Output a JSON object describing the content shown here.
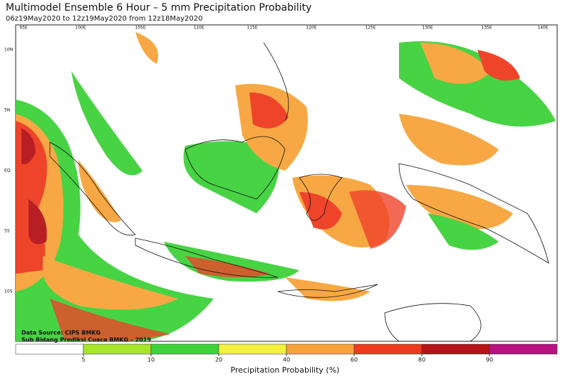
{
  "header": {
    "title": "Multimodel Ensemble 6 Hour – 5 mm Precipitation Probability",
    "subtitle": "06z19May2020 to 12z19May2020 from 12z18May2020"
  },
  "map": {
    "lon_labels": [
      "95E",
      "100E",
      "105E",
      "110E",
      "115E",
      "120E",
      "125E",
      "130E",
      "135E",
      "140E"
    ],
    "lat_labels": [
      "10N",
      "5N",
      "EQ",
      "5S",
      "10S"
    ],
    "credits": [
      "Data Source: CIPS BMKG",
      "Sub Bidang Prediksi Cuaca BMKG – 2019"
    ]
  },
  "colorbar": {
    "colors": [
      "#ffffff",
      "#a6e52a",
      "#3fd13a",
      "#f2f23c",
      "#f7a43a",
      "#ee3a1f",
      "#b4141a",
      "#b8127f"
    ],
    "ticks": [
      5,
      10,
      20,
      40,
      60,
      80,
      90
    ],
    "label": "Precipitation Probability (%)"
  }
}
